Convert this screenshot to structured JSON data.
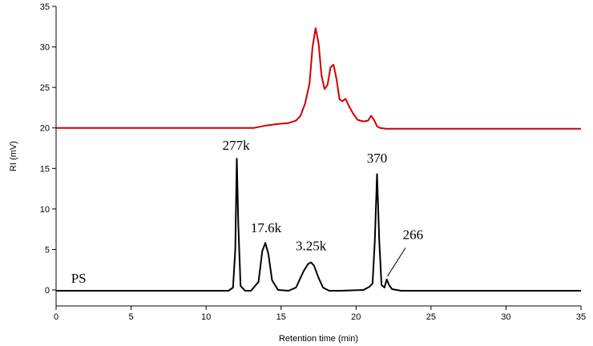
{
  "chart_data": {
    "type": "line",
    "title": "",
    "xlabel": "Retention time (min)",
    "ylabel": "RI (mV)",
    "xlim": [
      0,
      35
    ],
    "ylim": [
      -2,
      35
    ],
    "xticks": [
      0,
      5,
      10,
      15,
      20,
      25,
      30,
      35
    ],
    "yticks": [
      0,
      5,
      10,
      15,
      20,
      25,
      30,
      35
    ],
    "grid": false,
    "legend": "none",
    "series": [
      {
        "color": "#cc0000",
        "x": [
          0,
          5,
          10,
          12,
          13.2,
          14,
          14.8,
          15.5,
          16,
          16.3,
          16.6,
          16.9,
          17.1,
          17.3,
          17.5,
          17.7,
          17.9,
          18.1,
          18.3,
          18.5,
          18.7,
          18.9,
          19.1,
          19.3,
          19.5,
          19.8,
          20.1,
          20.5,
          20.8,
          21.0,
          21.2,
          21.4,
          21.6,
          22.0,
          25,
          30,
          35
        ],
        "y": [
          20.0,
          20.0,
          20.0,
          20.0,
          20.0,
          20.3,
          20.5,
          20.6,
          20.9,
          21.5,
          23.0,
          25.5,
          30.0,
          32.3,
          30.5,
          26.5,
          24.8,
          25.3,
          27.5,
          27.8,
          26.0,
          23.5,
          23.3,
          23.6,
          22.8,
          21.8,
          21.0,
          20.8,
          20.9,
          21.5,
          21.0,
          20.2,
          20.0,
          19.9,
          19.9,
          19.9,
          19.9
        ]
      },
      {
        "color": "#000000",
        "x": [
          0,
          5,
          10,
          11.5,
          11.8,
          11.95,
          12.05,
          12.15,
          12.3,
          12.6,
          13.0,
          13.5,
          13.75,
          13.95,
          14.15,
          14.4,
          14.8,
          15.5,
          16.0,
          16.5,
          16.8,
          17.0,
          17.2,
          17.5,
          17.8,
          18.2,
          19.0,
          20.5,
          20.9,
          21.1,
          21.25,
          21.4,
          21.55,
          21.7,
          21.9,
          22.05,
          22.2,
          22.4,
          23.0,
          25,
          30,
          35
        ],
        "y": [
          -0.1,
          -0.1,
          -0.1,
          -0.1,
          0.3,
          5.0,
          16.2,
          8.0,
          0.5,
          -0.1,
          -0.1,
          1.0,
          4.8,
          5.8,
          4.5,
          1.2,
          0.0,
          -0.1,
          0.3,
          2.3,
          3.2,
          3.4,
          3.0,
          1.5,
          0.3,
          -0.1,
          -0.1,
          0.0,
          0.4,
          0.8,
          6.0,
          14.3,
          6.0,
          0.6,
          0.3,
          1.3,
          0.6,
          0.1,
          -0.1,
          -0.1,
          -0.1,
          -0.1
        ]
      }
    ],
    "annotations": [
      {
        "text": "277k",
        "x": 12.0,
        "y": 17.3
      },
      {
        "text": "17.6k",
        "x": 14.0,
        "y": 7.1
      },
      {
        "text": "3.25k",
        "x": 17.0,
        "y": 4.9
      },
      {
        "text": "370",
        "x": 21.4,
        "y": 15.7
      },
      {
        "text": "266",
        "x": 23.8,
        "y": 6.3
      },
      {
        "text": "PS",
        "x": 1.0,
        "y": 0.9
      }
    ]
  }
}
